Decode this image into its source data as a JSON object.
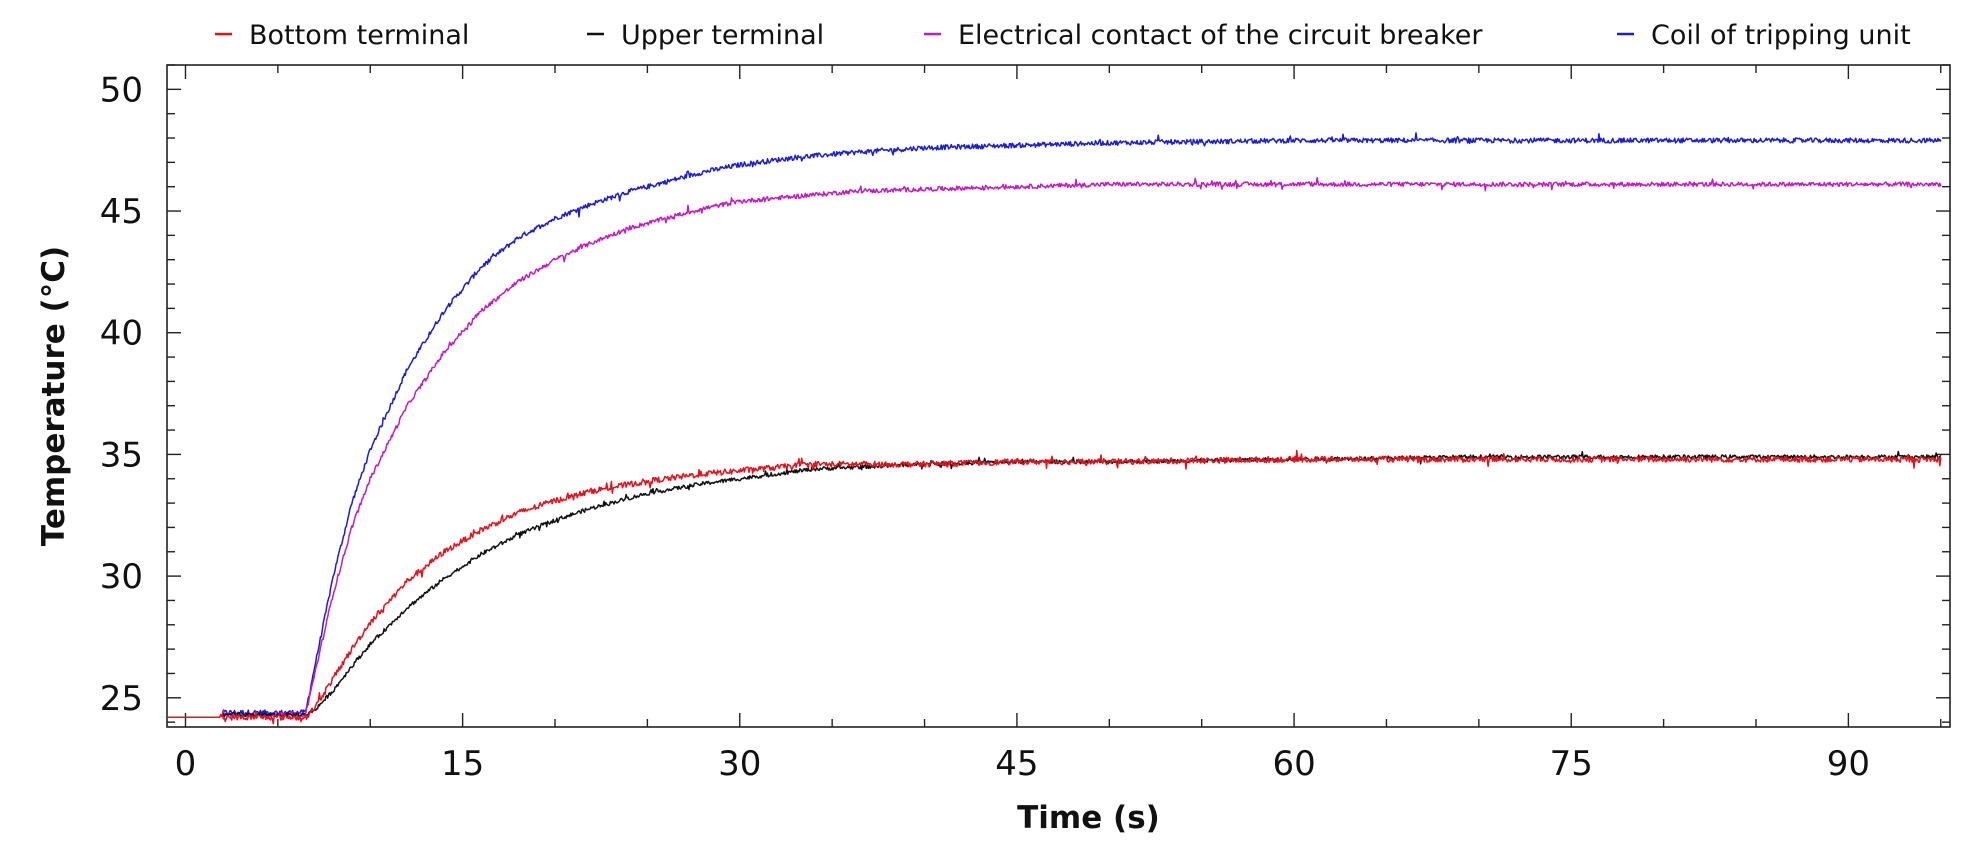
{
  "chart_data": {
    "type": "line",
    "title": "",
    "xlabel": "Time (s)",
    "ylabel": "Temperature (°C)",
    "xlim": [
      -1,
      95.5
    ],
    "ylim": [
      23.8,
      51
    ],
    "x_ticks": [
      0,
      15,
      30,
      45,
      60,
      75,
      90
    ],
    "y_ticks": [
      25,
      30,
      35,
      40,
      45,
      50
    ],
    "x_minor_step": 5,
    "y_minor_step": 1,
    "grid": false,
    "legend_position": "top",
    "series": [
      {
        "name": "Bottom terminal",
        "color": "#e8101a",
        "noise": 0.12,
        "x": [
          -1,
          2,
          6.5,
          7,
          8,
          9,
          10,
          12,
          14,
          16,
          18,
          20,
          22,
          25,
          28,
          31,
          34,
          37,
          40,
          45,
          50,
          60,
          70,
          80,
          95
        ],
        "y": [
          24.2,
          24.2,
          24.2,
          24.6,
          25.8,
          27.0,
          28.1,
          29.8,
          31.0,
          31.9,
          32.6,
          33.1,
          33.5,
          33.9,
          34.2,
          34.4,
          34.6,
          34.6,
          34.6,
          34.7,
          34.7,
          34.8,
          34.8,
          34.8,
          34.8
        ]
      },
      {
        "name": "Upper terminal",
        "color": "#111111",
        "noise": 0.08,
        "x": [
          2,
          6.5,
          7,
          8,
          9,
          10,
          12,
          14,
          16,
          18,
          20,
          22,
          25,
          28,
          31,
          34,
          37,
          40,
          45,
          50,
          60,
          70,
          80,
          95
        ],
        "y": [
          24.3,
          24.3,
          24.5,
          25.3,
          26.3,
          27.2,
          28.7,
          29.9,
          30.9,
          31.7,
          32.3,
          32.8,
          33.4,
          33.8,
          34.1,
          34.4,
          34.5,
          34.6,
          34.7,
          34.7,
          34.8,
          34.9,
          34.9,
          34.9
        ]
      },
      {
        "name": "Electrical contact of the circuit breaker",
        "color": "#c21bc2",
        "noise": 0.09,
        "x": [
          2,
          6.5,
          7,
          8,
          9,
          10,
          12,
          14,
          16,
          18,
          20,
          22,
          24,
          26,
          28,
          30,
          33,
          36,
          40,
          45,
          50,
          60,
          70,
          80,
          95
        ],
        "y": [
          24.3,
          24.3,
          26.0,
          29.3,
          32.0,
          34.0,
          37.0,
          39.2,
          40.9,
          42.1,
          43.0,
          43.7,
          44.3,
          44.7,
          45.1,
          45.4,
          45.6,
          45.8,
          45.9,
          46.0,
          46.1,
          46.1,
          46.1,
          46.1,
          46.1
        ]
      },
      {
        "name": "Coil of tripping unit",
        "color": "#1a1ae0",
        "noise": 0.1,
        "x": [
          2,
          6.5,
          7,
          8,
          9,
          10,
          12,
          14,
          16,
          18,
          20,
          22,
          24,
          26,
          28,
          30,
          33,
          36,
          40,
          45,
          50,
          60,
          70,
          80,
          95
        ],
        "y": [
          24.4,
          24.4,
          26.3,
          30.0,
          33.0,
          35.2,
          38.5,
          40.9,
          42.7,
          43.9,
          44.7,
          45.3,
          45.8,
          46.2,
          46.6,
          46.9,
          47.2,
          47.4,
          47.6,
          47.7,
          47.8,
          47.9,
          47.9,
          47.9,
          47.9
        ]
      }
    ]
  }
}
